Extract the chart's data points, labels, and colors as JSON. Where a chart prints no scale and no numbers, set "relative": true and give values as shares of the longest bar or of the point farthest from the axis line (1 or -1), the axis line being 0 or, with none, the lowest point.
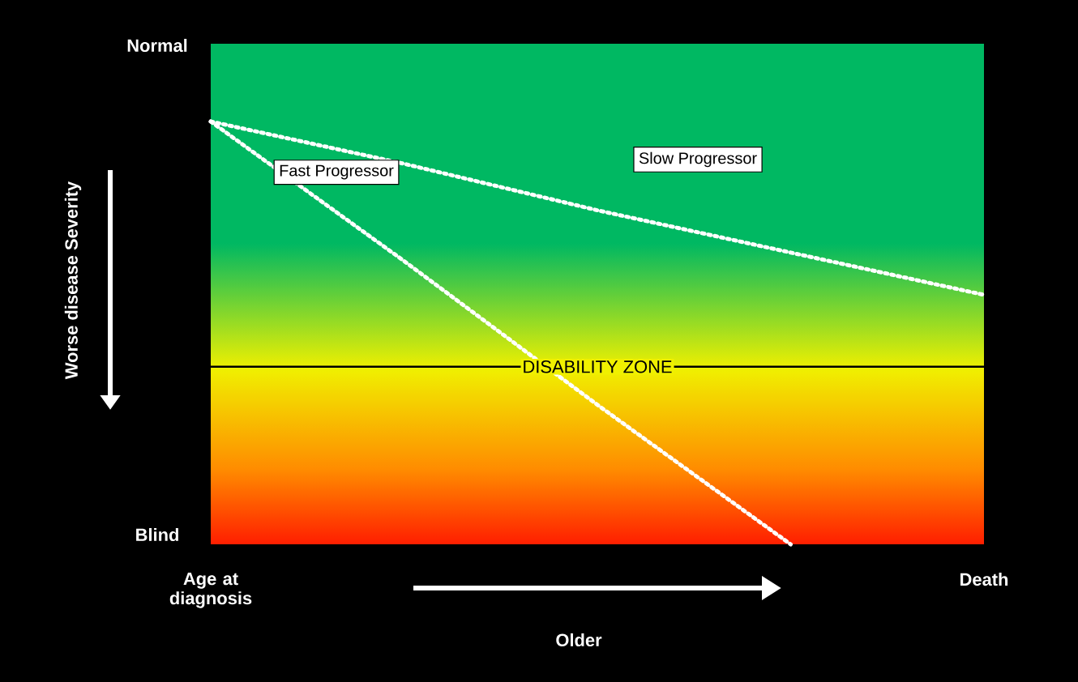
{
  "chart_data": {
    "type": "line",
    "relative": true,
    "categories": [
      "Age at diagnosis",
      null,
      null,
      null,
      "Death"
    ],
    "xlabel": "Older",
    "ylabel": "Worse disease Severity",
    "annotations": [
      "Normal",
      "Blind"
    ],
    "series": [
      {
        "name": "Slow Progressor",
        "color": "#ffffff",
        "values": [
          1,
          0.9,
          0.79,
          0.69,
          0.59
        ]
      },
      {
        "name": "Fast Progressor",
        "color": "#ffffff",
        "values": [
          1,
          0.67,
          0.33,
          0,
          null
        ]
      }
    ],
    "line_style": "dotted",
    "marker": "none",
    "legend": false,
    "grid": false,
    "ref_lines": [
      {
        "axis": "y",
        "value": 0.42,
        "label": "DISABILITY ZONE",
        "color": "#000000"
      }
    ]
  }
}
